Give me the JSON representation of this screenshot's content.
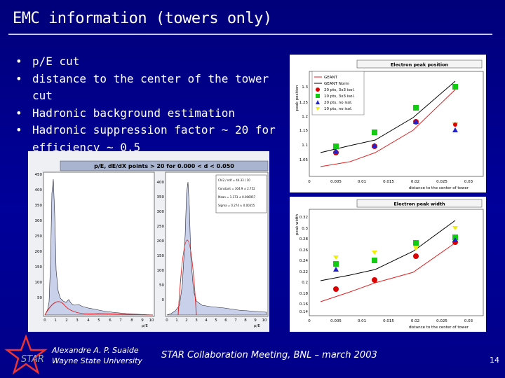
{
  "slide": {
    "title": "EMC information (towers only)",
    "bullets": [
      {
        "marker": "•",
        "text": "p/E cut"
      },
      {
        "marker": "•",
        "text": "distance to the center of the tower cut"
      },
      {
        "marker": "•",
        "text": "Hadronic background estimation"
      },
      {
        "marker": "•",
        "text": "Hadronic suppression factor ~ 20 for efficiency ~ 0.5"
      }
    ]
  },
  "footer": {
    "author_line1": "Alexandre A. P. Suaide",
    "author_line2": "Wayne State University",
    "meeting": "STAR Collaboration Meeting, BNL – march 2003",
    "page_number": "14",
    "logo_text": "STAR"
  },
  "left_plot": {
    "title": "p/E, dE/dX points > 20 for 0.000 < d < 0.050",
    "xlabel": "p/E",
    "y_ticks_left": [
      "450",
      "400",
      "350",
      "300",
      "250",
      "200",
      "150",
      "100",
      "50"
    ],
    "y_ticks_right": [
      "400",
      "350",
      "300",
      "250",
      "200",
      "150",
      "100",
      "50",
      "0"
    ],
    "x_ticks": [
      "0",
      "1",
      "2",
      "3",
      "4",
      "5",
      "6",
      "7",
      "8",
      "9",
      "10"
    ],
    "stats": [
      "Chi2 / ndf = 44.33 / 10",
      "Constant = 304.9 ± 2.752",
      "Mean = 1.173 ± 0.006957",
      "Sigma = 0.274 ± 0.00355"
    ]
  },
  "top_right_plot": {
    "title": "Electron peak position",
    "ylabel": "peak position",
    "xlabel": "distance to the center of tower",
    "y_ticks": [
      "1.3",
      "1.25",
      "1.2",
      "1.15",
      "1.1",
      "1.05"
    ],
    "x_ticks": [
      "0",
      "0.005",
      "0.01",
      "0.015",
      "0.02",
      "0.025",
      "0.03"
    ],
    "legend": [
      "GEANT",
      "GEANT Norm",
      "20 pts, 3x3 isol.",
      "10 pts, 3x3 isol.",
      "20 pts, no isol.",
      "10 pts, no isol."
    ]
  },
  "bottom_right_plot": {
    "title": "Electron peak width",
    "ylabel": "peak width",
    "xlabel": "distance to the center of tower",
    "y_ticks": [
      "0.32",
      "0.3",
      "0.28",
      "0.26",
      "0.24",
      "0.22",
      "0.2",
      "0.18",
      "0.16",
      "0.14"
    ],
    "x_ticks": [
      "0",
      "0.005",
      "0.01",
      "0.015",
      "0.02",
      "0.025",
      "0.03"
    ]
  },
  "colors": {
    "background": "#00008b",
    "geant": "#dd2222",
    "geant_norm": "#000000",
    "pts20_3x3": "#dd0000",
    "pts10_3x3": "#11cc11",
    "pts20_noisol": "#2222cc",
    "pts10_noisol": "#eeee00"
  }
}
